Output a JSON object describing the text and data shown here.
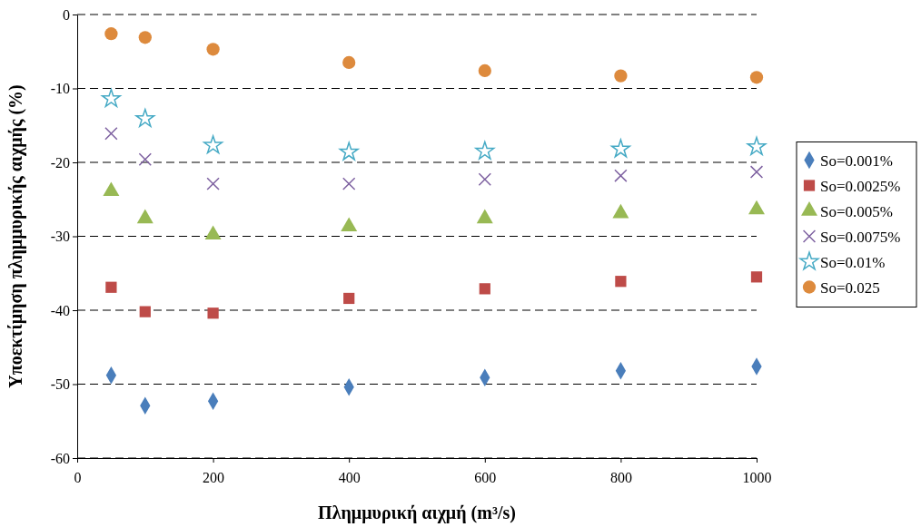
{
  "chart_data": {
    "type": "scatter",
    "xlabel": "Πλημμυρική αιχμή (m³/s)",
    "ylabel": "Υποεκτίμηση πλημμυρικής αιχμής (%)",
    "x": [
      50,
      100,
      200,
      400,
      600,
      800,
      1000
    ],
    "xlim": [
      0,
      1000
    ],
    "xticks": [
      0,
      200,
      400,
      600,
      800,
      1000
    ],
    "ylim": [
      -60,
      0
    ],
    "yticks": [
      -60,
      -50,
      -40,
      -30,
      -20,
      -10,
      0
    ],
    "grid": "y",
    "legend": "right",
    "line_style": "dashed",
    "series": [
      {
        "name": "So=0.001%",
        "color": "#4a7ebb",
        "marker": "diamond",
        "values": [
          -48.8,
          -52.9,
          -52.3,
          -50.4,
          -49.1,
          -48.2,
          -47.6
        ]
      },
      {
        "name": "So=0.0025%",
        "color": "#be4b48",
        "marker": "square",
        "values": [
          -36.9,
          -40.2,
          -40.4,
          -38.4,
          -37.1,
          -36.1,
          -35.5
        ]
      },
      {
        "name": "So=0.005%",
        "color": "#98b954",
        "marker": "triangle",
        "values": [
          -23.9,
          -27.6,
          -29.8,
          -28.7,
          -27.6,
          -26.9,
          -26.4
        ]
      },
      {
        "name": "So=0.0075%",
        "color": "#7d60a0",
        "marker": "cross",
        "values": [
          -16.1,
          -19.6,
          -22.9,
          -22.9,
          -22.3,
          -21.8,
          -21.3
        ]
      },
      {
        "name": "So=0.01%",
        "color": "#46aac5",
        "marker": "star",
        "values": [
          -11.4,
          -14.1,
          -17.7,
          -18.6,
          -18.5,
          -18.2,
          -17.9
        ]
      },
      {
        "name": "So=0.025",
        "color": "#dd8a3d",
        "marker": "circle",
        "values": [
          -2.6,
          -3.1,
          -4.7,
          -6.5,
          -7.6,
          -8.3,
          -8.5
        ]
      }
    ]
  }
}
